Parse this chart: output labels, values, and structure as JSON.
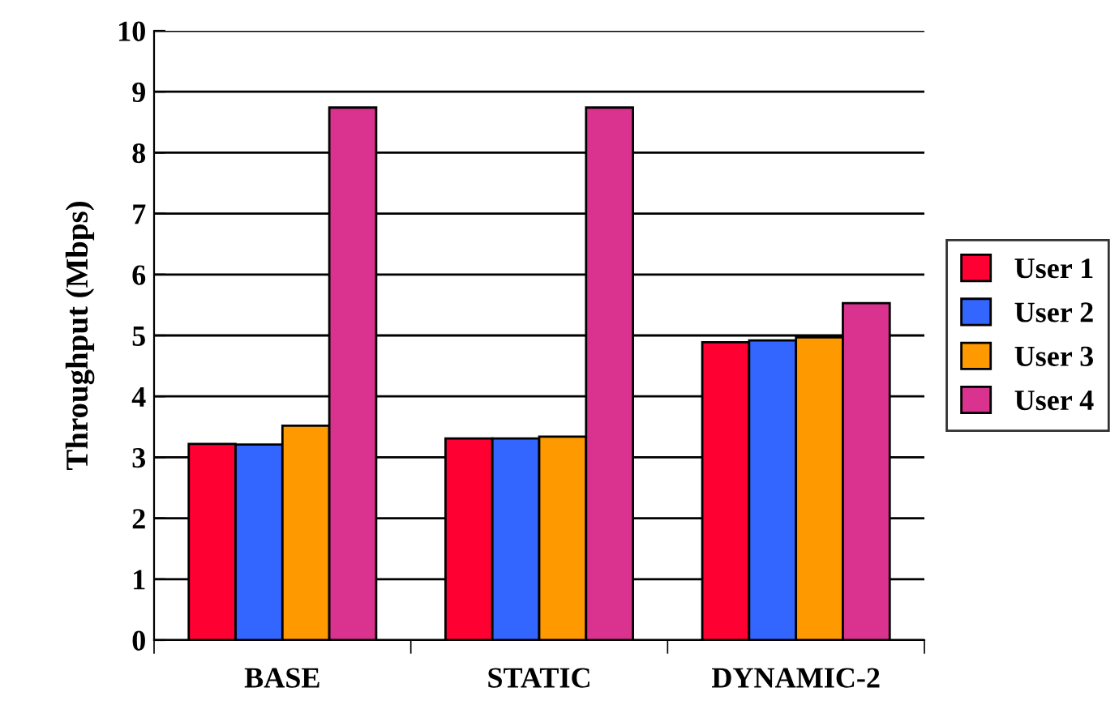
{
  "chart_data": {
    "type": "bar",
    "ylabel": "Throughput (Mbps)",
    "categories": [
      "BASE",
      "STATIC",
      "DYNAMIC-2"
    ],
    "series": [
      {
        "name": "User 1",
        "color": "#ff0033",
        "values": [
          3.22,
          3.31,
          4.89
        ]
      },
      {
        "name": "User 2",
        "color": "#3366ff",
        "values": [
          3.21,
          3.31,
          4.92
        ]
      },
      {
        "name": "User 3",
        "color": "#ff9900",
        "values": [
          3.52,
          3.34,
          4.97
        ]
      },
      {
        "name": "User 4",
        "color": "#d9338f",
        "values": [
          8.74,
          8.74,
          5.53
        ]
      }
    ],
    "ylim": [
      0,
      10
    ],
    "yticks": [
      0,
      1,
      2,
      3,
      4,
      5,
      6,
      7,
      8,
      9,
      10
    ],
    "grid": "y",
    "legend": "right"
  }
}
